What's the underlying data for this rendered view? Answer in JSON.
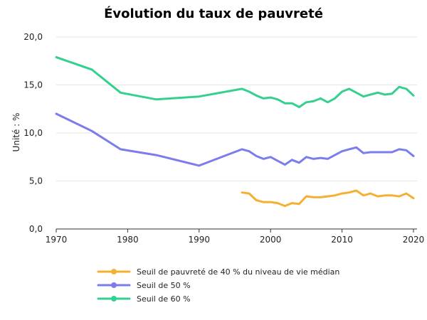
{
  "chart_data": {
    "type": "line",
    "title": "Évolution du taux de pauvreté",
    "ylabel": "Unité : %",
    "xlabel": "",
    "xlim": [
      1970,
      2020.5
    ],
    "ylim": [
      0,
      20
    ],
    "x_ticks": [
      1970,
      1980,
      1990,
      2000,
      2010,
      2020
    ],
    "y_ticks": [
      {
        "value": 0,
        "label": "0,0"
      },
      {
        "value": 5,
        "label": "5,0"
      },
      {
        "value": 10,
        "label": "10,0"
      },
      {
        "value": 15,
        "label": "15,0"
      },
      {
        "value": 20,
        "label": "20,0"
      }
    ],
    "grid": "horizontal",
    "legend_position": "bottom",
    "series": [
      {
        "name": "Seuil de pauvreté de 40 % du niveau de vie médian",
        "color": "#f5b031",
        "points": [
          [
            1996,
            3.8
          ],
          [
            1997,
            3.7
          ],
          [
            1998,
            3.0
          ],
          [
            1999,
            2.8
          ],
          [
            2000,
            2.8
          ],
          [
            2001,
            2.7
          ],
          [
            2002,
            2.4
          ],
          [
            2003,
            2.7
          ],
          [
            2004,
            2.6
          ],
          [
            2005,
            3.4
          ],
          [
            2006,
            3.3
          ],
          [
            2007,
            3.3
          ],
          [
            2008,
            3.4
          ],
          [
            2009,
            3.5
          ],
          [
            2010,
            3.7
          ],
          [
            2011,
            3.8
          ],
          [
            2012,
            4.0
          ],
          [
            2013,
            3.5
          ],
          [
            2014,
            3.7
          ],
          [
            2015,
            3.4
          ],
          [
            2016,
            3.5
          ],
          [
            2017,
            3.5
          ],
          [
            2018,
            3.4
          ],
          [
            2019,
            3.7
          ],
          [
            2020,
            3.2
          ]
        ]
      },
      {
        "name": "Seuil de 50 %",
        "color": "#7b7ded",
        "points": [
          [
            1970,
            12.0
          ],
          [
            1975,
            10.2
          ],
          [
            1979,
            8.3
          ],
          [
            1984,
            7.7
          ],
          [
            1990,
            6.6
          ],
          [
            1996,
            8.3
          ],
          [
            1997,
            8.1
          ],
          [
            1998,
            7.6
          ],
          [
            1999,
            7.3
          ],
          [
            2000,
            7.5
          ],
          [
            2001,
            7.1
          ],
          [
            2002,
            6.7
          ],
          [
            2003,
            7.2
          ],
          [
            2004,
            6.9
          ],
          [
            2005,
            7.5
          ],
          [
            2006,
            7.3
          ],
          [
            2007,
            7.4
          ],
          [
            2008,
            7.3
          ],
          [
            2009,
            7.7
          ],
          [
            2010,
            8.1
          ],
          [
            2011,
            8.3
          ],
          [
            2012,
            8.5
          ],
          [
            2013,
            7.9
          ],
          [
            2014,
            8.0
          ],
          [
            2015,
            8.0
          ],
          [
            2016,
            8.0
          ],
          [
            2017,
            8.0
          ],
          [
            2018,
            8.3
          ],
          [
            2019,
            8.2
          ],
          [
            2020,
            7.6
          ]
        ]
      },
      {
        "name": "Seuil de 60 %",
        "color": "#35d08e",
        "points": [
          [
            1970,
            17.9
          ],
          [
            1975,
            16.6
          ],
          [
            1979,
            14.2
          ],
          [
            1984,
            13.5
          ],
          [
            1990,
            13.8
          ],
          [
            1996,
            14.6
          ],
          [
            1997,
            14.3
          ],
          [
            1998,
            13.9
          ],
          [
            1999,
            13.6
          ],
          [
            2000,
            13.7
          ],
          [
            2001,
            13.5
          ],
          [
            2002,
            13.1
          ],
          [
            2003,
            13.1
          ],
          [
            2004,
            12.7
          ],
          [
            2005,
            13.2
          ],
          [
            2006,
            13.3
          ],
          [
            2007,
            13.6
          ],
          [
            2008,
            13.2
          ],
          [
            2009,
            13.6
          ],
          [
            2010,
            14.3
          ],
          [
            2011,
            14.6
          ],
          [
            2012,
            14.2
          ],
          [
            2013,
            13.8
          ],
          [
            2014,
            14.0
          ],
          [
            2015,
            14.2
          ],
          [
            2016,
            14.0
          ],
          [
            2017,
            14.1
          ],
          [
            2018,
            14.8
          ],
          [
            2019,
            14.6
          ],
          [
            2020,
            13.9
          ]
        ]
      }
    ]
  }
}
